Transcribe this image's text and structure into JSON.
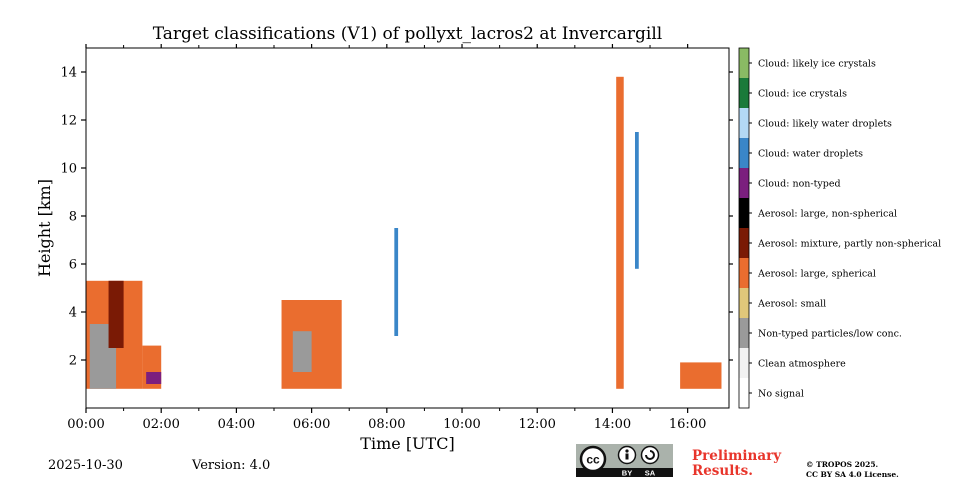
{
  "chart_data": {
    "type": "heatmap",
    "title": "Target classifications (V1) of pollyxt_lacros2 at Invercargill",
    "xlabel": "Time [UTC]",
    "ylabel": "Height [km]",
    "xlim_hours": [
      0,
      17.1
    ],
    "ylim_km": [
      0,
      15
    ],
    "xticks": [
      {
        "h": 0,
        "label": "00:00"
      },
      {
        "h": 2,
        "label": "02:00"
      },
      {
        "h": 4,
        "label": "04:00"
      },
      {
        "h": 6,
        "label": "06:00"
      },
      {
        "h": 8,
        "label": "08:00"
      },
      {
        "h": 10,
        "label": "10:00"
      },
      {
        "h": 12,
        "label": "12:00"
      },
      {
        "h": 14,
        "label": "14:00"
      },
      {
        "h": 16,
        "label": "16:00"
      }
    ],
    "yticks": [
      {
        "km": 2,
        "label": "2"
      },
      {
        "km": 4,
        "label": "4"
      },
      {
        "km": 6,
        "label": "6"
      },
      {
        "km": 8,
        "label": "8"
      },
      {
        "km": 10,
        "label": "10"
      },
      {
        "km": 12,
        "label": "12"
      },
      {
        "km": 14,
        "label": "14"
      }
    ],
    "classes": [
      {
        "label": "Cloud: likely ice crystals",
        "color": "#8aba64"
      },
      {
        "label": "Cloud: ice crystals",
        "color": "#1a7a3a"
      },
      {
        "label": "Cloud: likely water droplets",
        "color": "#b3d9f5"
      },
      {
        "label": "Cloud: water droplets",
        "color": "#3a86c8"
      },
      {
        "label": "Cloud: non-typed",
        "color": "#7b1f7e"
      },
      {
        "label": "Aerosol: large, non-spherical",
        "color": "#000000"
      },
      {
        "label": "Aerosol: mixture, partly non-spherical",
        "color": "#7a1a05"
      },
      {
        "label": "Aerosol: large, spherical",
        "color": "#ea6d2f"
      },
      {
        "label": "Aerosol: small",
        "color": "#e0c77a"
      },
      {
        "label": "Non-typed particles/low conc.",
        "color": "#9a9a9a"
      },
      {
        "label": "Clean atmosphere",
        "color": "#f2f2f2"
      },
      {
        "label": "No signal",
        "color": "#ffffff"
      }
    ],
    "layers": [
      {
        "t0": 0.0,
        "t1": 1.5,
        "bottom_km": 0.8,
        "top_km": 5.3,
        "class": "Aerosol: large, spherical"
      },
      {
        "t0": 0.1,
        "t1": 0.8,
        "bottom_km": 0.8,
        "top_km": 3.5,
        "class": "Non-typed particles/low conc."
      },
      {
        "t0": 0.6,
        "t1": 1.0,
        "bottom_km": 2.5,
        "top_km": 5.3,
        "class": "Aerosol: mixture, partly non-spherical"
      },
      {
        "t0": 1.5,
        "t1": 2.0,
        "bottom_km": 0.8,
        "top_km": 2.6,
        "class": "Aerosol: large, spherical"
      },
      {
        "t0": 1.6,
        "t1": 2.0,
        "bottom_km": 1.0,
        "top_km": 1.5,
        "class": "Cloud: non-typed"
      },
      {
        "t0": 5.2,
        "t1": 6.8,
        "bottom_km": 0.8,
        "top_km": 4.5,
        "class": "Aerosol: large, spherical"
      },
      {
        "t0": 5.5,
        "t1": 6.0,
        "bottom_km": 1.5,
        "top_km": 3.2,
        "class": "Non-typed particles/low conc."
      },
      {
        "t0": 8.2,
        "t1": 8.3,
        "bottom_km": 3.0,
        "top_km": 7.5,
        "class": "Cloud: water droplets"
      },
      {
        "t0": 14.1,
        "t1": 14.3,
        "bottom_km": 0.8,
        "top_km": 13.8,
        "class": "Aerosol: large, spherical"
      },
      {
        "t0": 14.6,
        "t1": 14.7,
        "bottom_km": 5.8,
        "top_km": 11.5,
        "class": "Cloud: water droplets"
      },
      {
        "t0": 15.8,
        "t1": 16.9,
        "bottom_km": 0.8,
        "top_km": 1.9,
        "class": "Aerosol: large, spherical"
      }
    ]
  },
  "footer": {
    "date": "2025-10-30",
    "version": "Version: 4.0",
    "preliminary": "Preliminary Results.",
    "license_line1": "© TROPOS 2025.",
    "license_line2": "CC BY SA 4.0 License.",
    "cc_labels": {
      "cc": "cc",
      "by": "BY",
      "sa": "SA"
    }
  }
}
